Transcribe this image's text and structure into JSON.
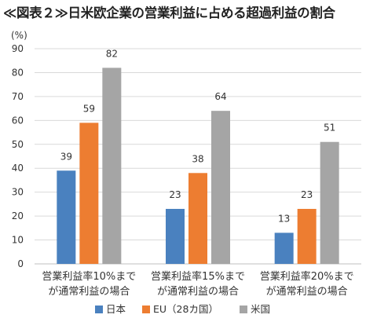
{
  "title": "≪図表２≫日米欧企業の営業利益に占める超過利益の割合",
  "chart_data": {
    "type": "bar",
    "ylabel": "(%)",
    "xlabel": "",
    "ylim": [
      0,
      90
    ],
    "yticks": [
      0,
      10,
      20,
      30,
      40,
      50,
      60,
      70,
      80,
      90
    ],
    "grid": true,
    "legend_position": "bottom",
    "categories": [
      [
        "営業利益率10%まで",
        "が通常利益の場合"
      ],
      [
        "営業利益率15%まで",
        "が通常利益の場合"
      ],
      [
        "営業利益率20%まで",
        "が通常利益の場合"
      ]
    ],
    "series": [
      {
        "name": "日本",
        "color": "#4a81bf",
        "values": [
          39,
          23,
          13
        ]
      },
      {
        "name": "EU（28カ国）",
        "color": "#ed7d31",
        "values": [
          59,
          38,
          23
        ]
      },
      {
        "name": "米国",
        "color": "#a5a5a5",
        "values": [
          82,
          64,
          51
        ]
      }
    ]
  }
}
